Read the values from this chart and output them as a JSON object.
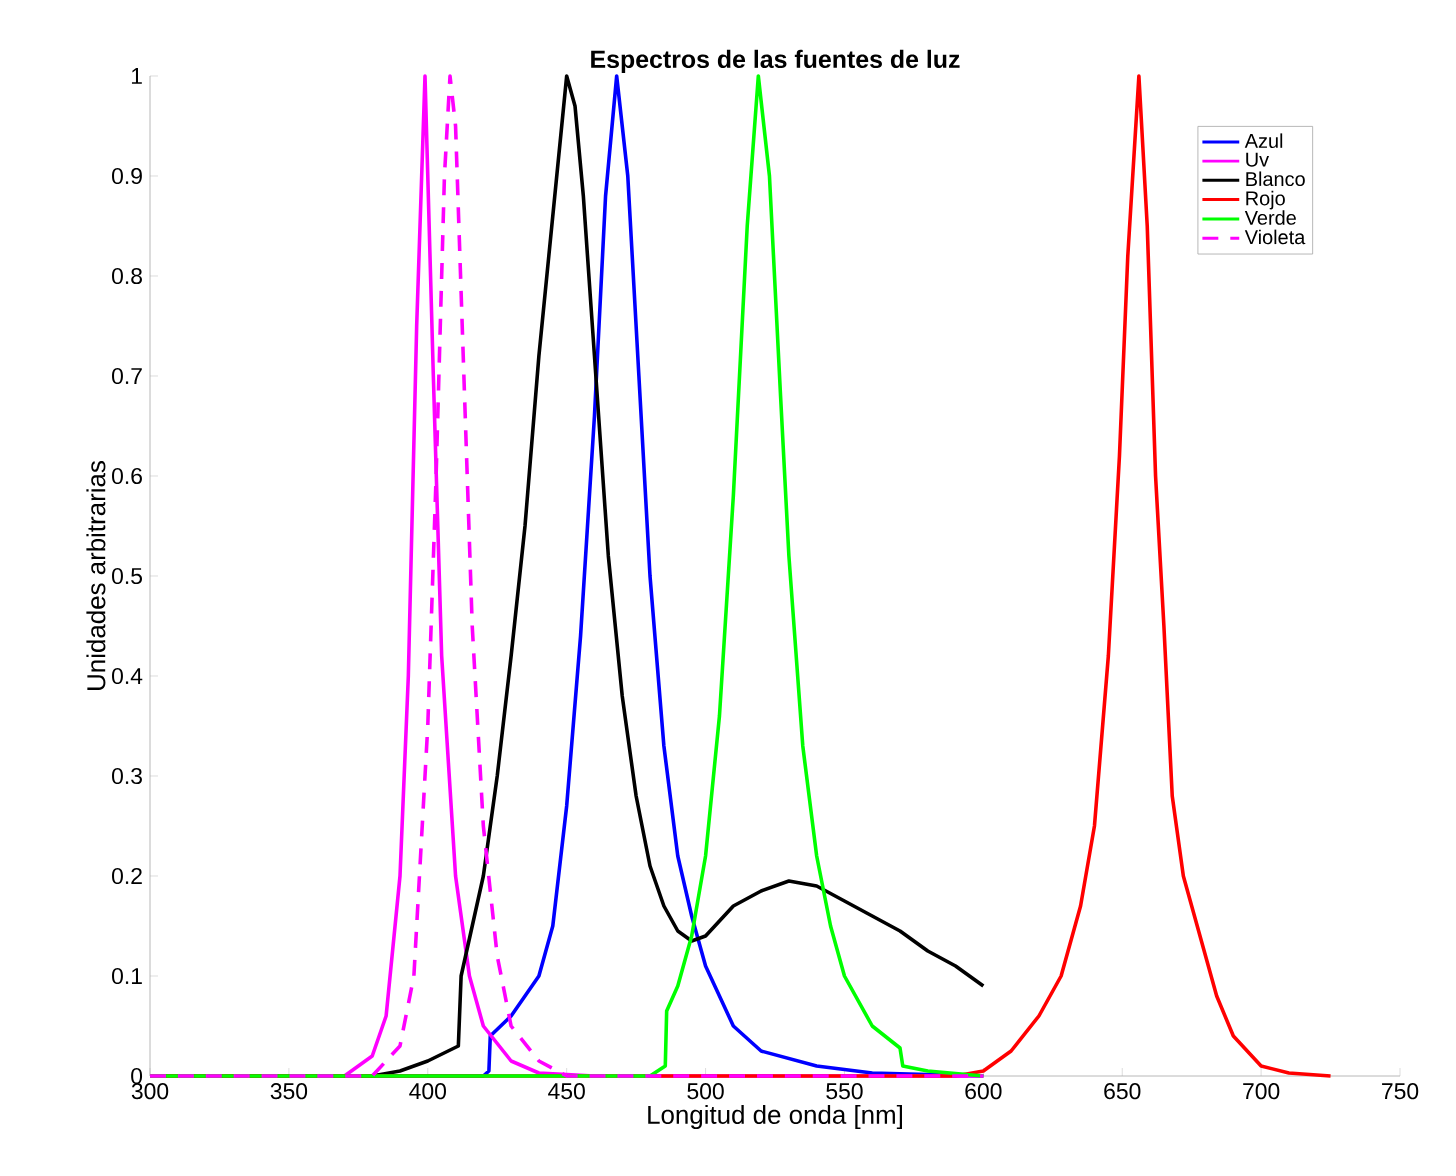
{
  "chart_data": {
    "type": "line",
    "title": "Espectros de las fuentes de luz",
    "xlabel": "Longitud de onda [nm]",
    "ylabel": "Unidades arbitrarias",
    "xlim": [
      300,
      750
    ],
    "ylim": [
      0,
      1
    ],
    "xticks": [
      300,
      350,
      400,
      450,
      500,
      550,
      600,
      650,
      700,
      750
    ],
    "yticks": [
      0,
      0.1,
      0.2,
      0.3,
      0.4,
      0.5,
      0.6,
      0.7,
      0.8,
      0.9,
      1
    ],
    "legend": "top right",
    "line_style": "solid",
    "marker": "none",
    "series": [
      {
        "name": "Azul",
        "color": "#0000ff",
        "x": [
          300,
          420,
          422,
          422.5,
          430,
          440,
          445,
          450,
          455,
          460,
          464,
          468,
          472,
          476,
          480,
          485,
          490,
          495,
          500,
          510,
          520,
          540,
          560,
          600
        ],
        "values": [
          0,
          0,
          0.005,
          0.04,
          0.06,
          0.1,
          0.15,
          0.27,
          0.44,
          0.66,
          0.88,
          1,
          0.9,
          0.7,
          0.5,
          0.33,
          0.22,
          0.16,
          0.11,
          0.05,
          0.025,
          0.01,
          0.003,
          0
        ]
      },
      {
        "name": "Uv",
        "color": "#ff00ff",
        "x": [
          300,
          370,
          380,
          385,
          390,
          393,
          396,
          399,
          402,
          405,
          410,
          415,
          420,
          430,
          440,
          460,
          600
        ],
        "values": [
          0,
          0,
          0.02,
          0.06,
          0.2,
          0.4,
          0.75,
          1,
          0.7,
          0.42,
          0.2,
          0.1,
          0.05,
          0.015,
          0.003,
          0,
          0
        ]
      },
      {
        "name": "Blanco",
        "color": "#000000",
        "x": [
          300,
          380,
          390,
          400,
          411,
          412,
          420,
          425,
          430,
          435,
          440,
          445,
          450,
          453,
          456,
          460,
          465,
          470,
          475,
          480,
          485,
          490,
          495,
          500,
          505,
          510,
          520,
          530,
          540,
          550,
          560,
          570,
          580,
          590,
          600
        ],
        "values": [
          0,
          0,
          0.005,
          0.015,
          0.03,
          0.1,
          0.2,
          0.3,
          0.42,
          0.55,
          0.72,
          0.86,
          1,
          0.97,
          0.88,
          0.72,
          0.52,
          0.38,
          0.28,
          0.21,
          0.17,
          0.145,
          0.135,
          0.14,
          0.155,
          0.17,
          0.185,
          0.195,
          0.19,
          0.175,
          0.16,
          0.145,
          0.125,
          0.11,
          0.09
        ]
      },
      {
        "name": "Rojo",
        "color": "#ff0000",
        "x": [
          300,
          590,
          600,
          610,
          620,
          628,
          635,
          640,
          645,
          649,
          652,
          656,
          659,
          662,
          665,
          668,
          672,
          677,
          684,
          690,
          700,
          710,
          725
        ],
        "values": [
          0,
          0,
          0.005,
          0.025,
          0.06,
          0.1,
          0.17,
          0.25,
          0.42,
          0.62,
          0.82,
          1,
          0.85,
          0.6,
          0.45,
          0.28,
          0.2,
          0.15,
          0.08,
          0.04,
          0.01,
          0.003,
          0
        ]
      },
      {
        "name": "Verde",
        "color": "#00ff00",
        "x": [
          300,
          480,
          485.5,
          486,
          490,
          495,
          500,
          505,
          510,
          515,
          519,
          523,
          527,
          530,
          535,
          540,
          545,
          550,
          560,
          570,
          571,
          580,
          600
        ],
        "values": [
          0,
          0,
          0.01,
          0.065,
          0.09,
          0.14,
          0.22,
          0.36,
          0.58,
          0.85,
          1,
          0.9,
          0.68,
          0.52,
          0.33,
          0.22,
          0.15,
          0.1,
          0.05,
          0.028,
          0.01,
          0.005,
          0
        ]
      },
      {
        "name": "Violeta",
        "color": "#ff00ff",
        "line_style": "dashed",
        "x": [
          300,
          380,
          390,
          395,
          400,
          403,
          406,
          408,
          410,
          413,
          416,
          420,
          425,
          430,
          440,
          450,
          600
        ],
        "values": [
          0,
          0,
          0.03,
          0.1,
          0.35,
          0.6,
          0.9,
          1,
          0.95,
          0.7,
          0.45,
          0.25,
          0.12,
          0.05,
          0.015,
          0,
          0
        ]
      }
    ]
  }
}
